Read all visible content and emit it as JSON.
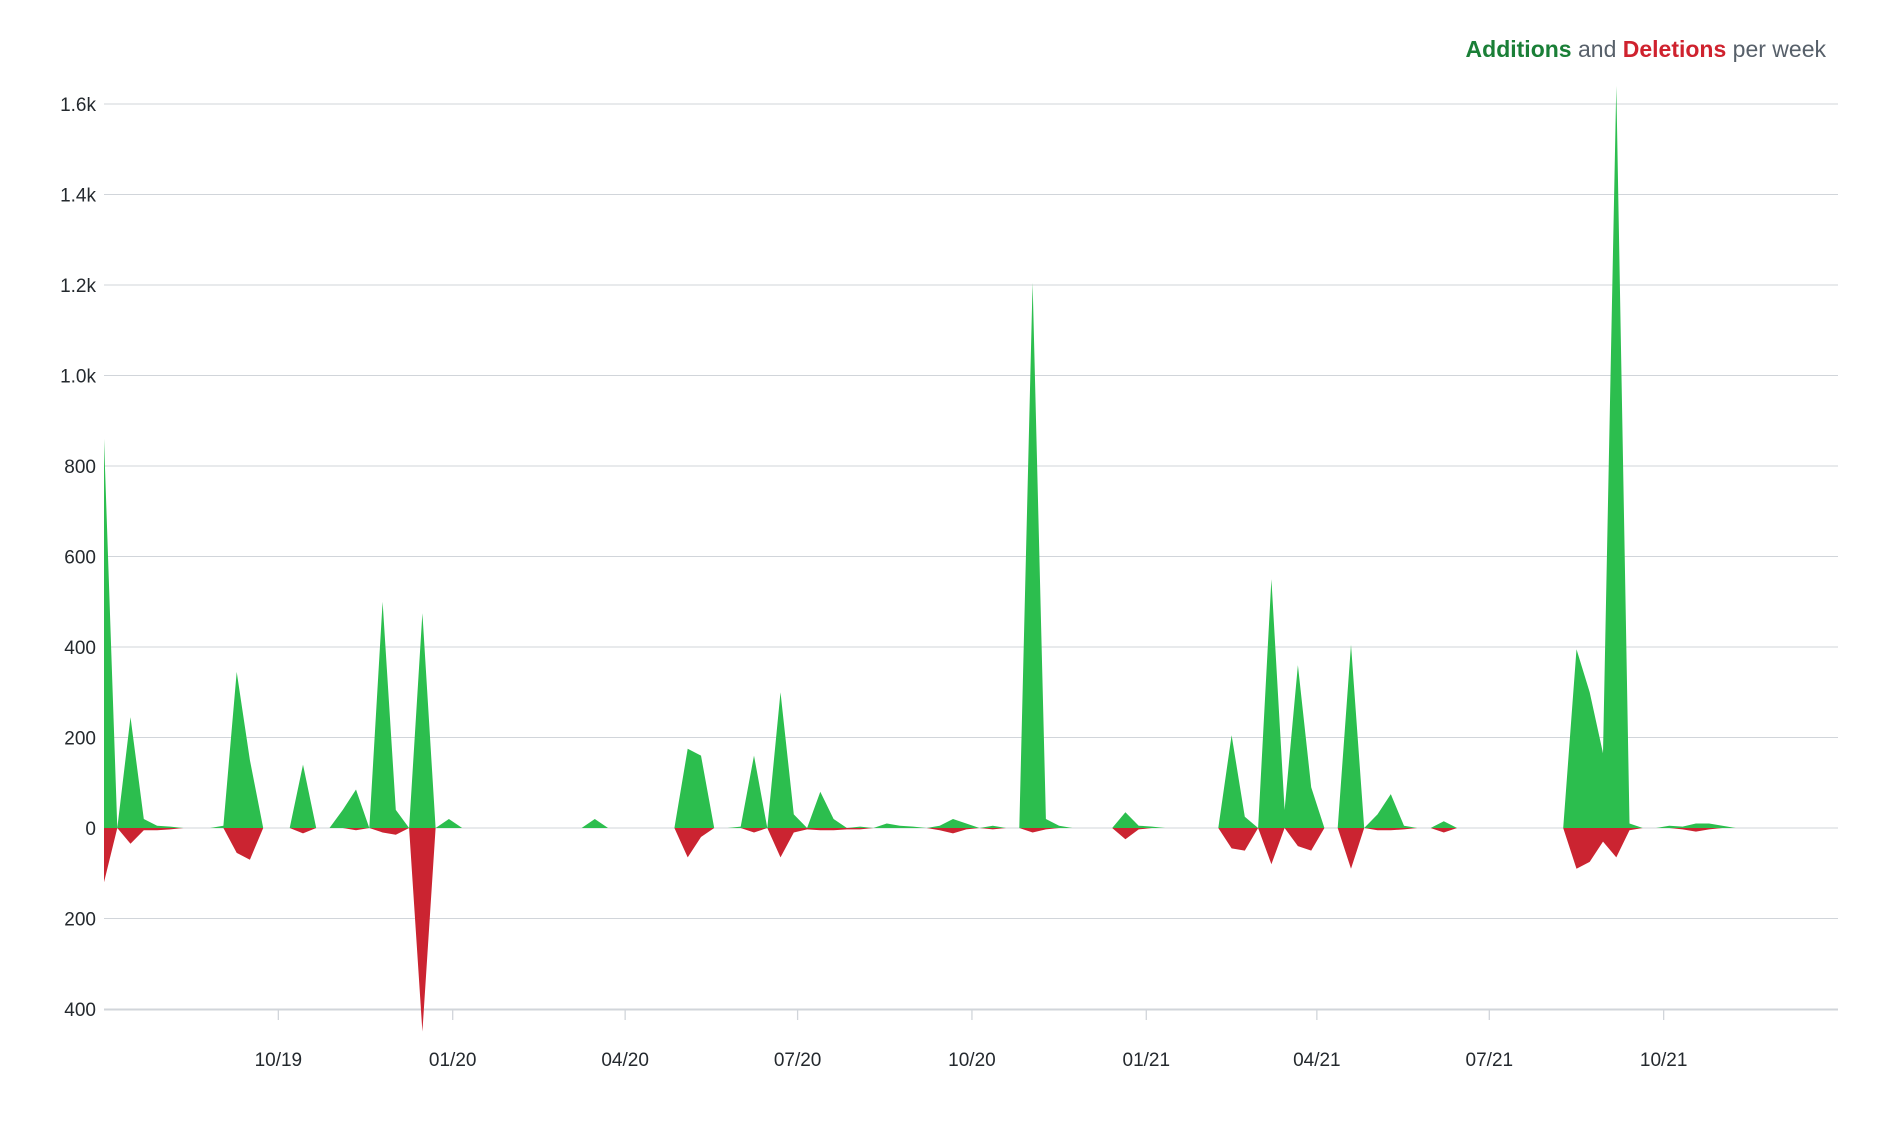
{
  "chart_data": {
    "type": "area",
    "legend": {
      "additions_label": "Additions",
      "connector": " and ",
      "deletions_label": "Deletions",
      "suffix": " per week",
      "placement": "top-right"
    },
    "colors": {
      "additions": "#2cbe4e",
      "deletions": "#cb2431",
      "legend_additions": "#1a7f37",
      "legend_deletions": "#cf222e",
      "grid": "#d1d5da"
    },
    "y_ticks": [
      {
        "value": 1600,
        "label": "1.6k"
      },
      {
        "value": 1400,
        "label": "1.4k"
      },
      {
        "value": 1200,
        "label": "1.2k"
      },
      {
        "value": 1000,
        "label": "1.0k"
      },
      {
        "value": 800,
        "label": "800"
      },
      {
        "value": 600,
        "label": "600"
      },
      {
        "value": 400,
        "label": "400"
      },
      {
        "value": 200,
        "label": "200"
      },
      {
        "value": 0,
        "label": "0"
      },
      {
        "value": -200,
        "label": "200"
      },
      {
        "value": -400,
        "label": "400"
      }
    ],
    "ylim": [
      -450,
      1620
    ],
    "x_ticks": [
      {
        "date": "2019-10-01",
        "label": "10/19"
      },
      {
        "date": "2020-01-01",
        "label": "01/20"
      },
      {
        "date": "2020-04-01",
        "label": "04/20"
      },
      {
        "date": "2020-07-01",
        "label": "07/20"
      },
      {
        "date": "2020-10-01",
        "label": "10/20"
      },
      {
        "date": "2021-01-01",
        "label": "01/21"
      },
      {
        "date": "2021-04-01",
        "label": "04/21"
      },
      {
        "date": "2021-07-01",
        "label": "07/21"
      },
      {
        "date": "2021-10-01",
        "label": "10/21"
      }
    ],
    "xlim": [
      "2019-07-01",
      "2022-01-01"
    ],
    "grid": true,
    "series": [
      {
        "name": "Additions",
        "points": [
          [
            "2019-07-01",
            860
          ],
          [
            "2019-07-08",
            0
          ],
          [
            "2019-07-15",
            245
          ],
          [
            "2019-07-22",
            20
          ],
          [
            "2019-07-29",
            5
          ],
          [
            "2019-08-05",
            3
          ],
          [
            "2019-08-12",
            0
          ],
          [
            "2019-08-26",
            0
          ],
          [
            "2019-09-02",
            5
          ],
          [
            "2019-09-09",
            345
          ],
          [
            "2019-09-16",
            150
          ],
          [
            "2019-09-23",
            0
          ],
          [
            "2019-10-07",
            0
          ],
          [
            "2019-10-14",
            140
          ],
          [
            "2019-10-21",
            0
          ],
          [
            "2019-10-28",
            0
          ],
          [
            "2019-11-04",
            40
          ],
          [
            "2019-11-11",
            85
          ],
          [
            "2019-11-18",
            0
          ],
          [
            "2019-11-25",
            500
          ],
          [
            "2019-12-02",
            40
          ],
          [
            "2019-12-09",
            0
          ],
          [
            "2019-12-16",
            475
          ],
          [
            "2019-12-23",
            0
          ],
          [
            "2019-12-30",
            20
          ],
          [
            "2020-01-06",
            0
          ],
          [
            "2020-03-09",
            0
          ],
          [
            "2020-03-16",
            20
          ],
          [
            "2020-03-23",
            0
          ],
          [
            "2020-04-27",
            0
          ],
          [
            "2020-05-04",
            175
          ],
          [
            "2020-05-11",
            160
          ],
          [
            "2020-05-18",
            0
          ],
          [
            "2020-05-25",
            0
          ],
          [
            "2020-06-01",
            3
          ],
          [
            "2020-06-08",
            160
          ],
          [
            "2020-06-15",
            0
          ],
          [
            "2020-06-22",
            300
          ],
          [
            "2020-06-29",
            30
          ],
          [
            "2020-07-06",
            0
          ],
          [
            "2020-07-13",
            80
          ],
          [
            "2020-07-20",
            20
          ],
          [
            "2020-07-27",
            0
          ],
          [
            "2020-08-03",
            3
          ],
          [
            "2020-08-10",
            0
          ],
          [
            "2020-08-17",
            10
          ],
          [
            "2020-08-24",
            5
          ],
          [
            "2020-08-31",
            3
          ],
          [
            "2020-09-07",
            0
          ],
          [
            "2020-09-14",
            5
          ],
          [
            "2020-09-21",
            20
          ],
          [
            "2020-09-28",
            10
          ],
          [
            "2020-10-05",
            0
          ],
          [
            "2020-10-12",
            5
          ],
          [
            "2020-10-19",
            0
          ],
          [
            "2020-10-26",
            0
          ],
          [
            "2020-11-02",
            1205
          ],
          [
            "2020-11-09",
            20
          ],
          [
            "2020-11-16",
            5
          ],
          [
            "2020-11-23",
            0
          ],
          [
            "2020-12-14",
            0
          ],
          [
            "2020-12-21",
            35
          ],
          [
            "2020-12-28",
            5
          ],
          [
            "2021-01-04",
            3
          ],
          [
            "2021-01-11",
            0
          ],
          [
            "2021-02-08",
            0
          ],
          [
            "2021-02-15",
            205
          ],
          [
            "2021-02-22",
            25
          ],
          [
            "2021-03-01",
            0
          ],
          [
            "2021-03-08",
            550
          ],
          [
            "2021-03-15",
            40
          ],
          [
            "2021-03-22",
            360
          ],
          [
            "2021-03-29",
            90
          ],
          [
            "2021-04-05",
            0
          ],
          [
            "2021-04-12",
            0
          ],
          [
            "2021-04-19",
            405
          ],
          [
            "2021-04-26",
            0
          ],
          [
            "2021-05-03",
            30
          ],
          [
            "2021-05-10",
            75
          ],
          [
            "2021-05-17",
            5
          ],
          [
            "2021-05-24",
            0
          ],
          [
            "2021-05-31",
            0
          ],
          [
            "2021-06-07",
            15
          ],
          [
            "2021-06-14",
            0
          ],
          [
            "2021-08-09",
            0
          ],
          [
            "2021-08-16",
            395
          ],
          [
            "2021-08-23",
            300
          ],
          [
            "2021-08-30",
            165
          ],
          [
            "2021-09-06",
            1640
          ],
          [
            "2021-09-13",
            10
          ],
          [
            "2021-09-20",
            0
          ],
          [
            "2021-09-27",
            0
          ],
          [
            "2021-10-04",
            5
          ],
          [
            "2021-10-11",
            3
          ],
          [
            "2021-10-18",
            10
          ],
          [
            "2021-10-25",
            10
          ],
          [
            "2021-11-01",
            5
          ],
          [
            "2021-11-08",
            0
          ]
        ]
      },
      {
        "name": "Deletions",
        "points": [
          [
            "2019-07-01",
            -120
          ],
          [
            "2019-07-08",
            0
          ],
          [
            "2019-07-15",
            -35
          ],
          [
            "2019-07-22",
            -5
          ],
          [
            "2019-07-29",
            -5
          ],
          [
            "2019-08-05",
            -3
          ],
          [
            "2019-08-12",
            0
          ],
          [
            "2019-09-02",
            0
          ],
          [
            "2019-09-09",
            -55
          ],
          [
            "2019-09-16",
            -70
          ],
          [
            "2019-09-23",
            0
          ],
          [
            "2019-10-07",
            0
          ],
          [
            "2019-10-14",
            -12
          ],
          [
            "2019-10-21",
            0
          ],
          [
            "2019-11-04",
            0
          ],
          [
            "2019-11-11",
            -5
          ],
          [
            "2019-11-18",
            0
          ],
          [
            "2019-11-25",
            -10
          ],
          [
            "2019-12-02",
            -15
          ],
          [
            "2019-12-09",
            0
          ],
          [
            "2019-12-16",
            -450
          ],
          [
            "2019-12-23",
            0
          ],
          [
            "2020-04-27",
            0
          ],
          [
            "2020-05-04",
            -65
          ],
          [
            "2020-05-11",
            -20
          ],
          [
            "2020-05-18",
            0
          ],
          [
            "2020-06-01",
            0
          ],
          [
            "2020-06-08",
            -10
          ],
          [
            "2020-06-15",
            0
          ],
          [
            "2020-06-22",
            -65
          ],
          [
            "2020-06-29",
            -10
          ],
          [
            "2020-07-06",
            -3
          ],
          [
            "2020-07-13",
            -5
          ],
          [
            "2020-07-20",
            -5
          ],
          [
            "2020-07-27",
            -3
          ],
          [
            "2020-08-03",
            -3
          ],
          [
            "2020-08-10",
            0
          ],
          [
            "2020-09-07",
            0
          ],
          [
            "2020-09-14",
            -5
          ],
          [
            "2020-09-21",
            -12
          ],
          [
            "2020-09-28",
            -3
          ],
          [
            "2020-10-05",
            0
          ],
          [
            "2020-10-12",
            -3
          ],
          [
            "2020-10-19",
            0
          ],
          [
            "2020-10-26",
            0
          ],
          [
            "2020-11-02",
            -10
          ],
          [
            "2020-11-09",
            -3
          ],
          [
            "2020-11-16",
            0
          ],
          [
            "2020-12-14",
            0
          ],
          [
            "2020-12-21",
            -25
          ],
          [
            "2020-12-28",
            -3
          ],
          [
            "2021-01-04",
            0
          ],
          [
            "2021-02-08",
            0
          ],
          [
            "2021-02-15",
            -45
          ],
          [
            "2021-02-22",
            -50
          ],
          [
            "2021-03-01",
            0
          ],
          [
            "2021-03-08",
            -80
          ],
          [
            "2021-03-15",
            0
          ],
          [
            "2021-03-22",
            -40
          ],
          [
            "2021-03-29",
            -50
          ],
          [
            "2021-04-05",
            0
          ],
          [
            "2021-04-12",
            0
          ],
          [
            "2021-04-19",
            -90
          ],
          [
            "2021-04-26",
            0
          ],
          [
            "2021-05-03",
            -5
          ],
          [
            "2021-05-10",
            -5
          ],
          [
            "2021-05-17",
            -3
          ],
          [
            "2021-05-24",
            0
          ],
          [
            "2021-05-31",
            0
          ],
          [
            "2021-06-07",
            -10
          ],
          [
            "2021-06-14",
            0
          ],
          [
            "2021-08-09",
            0
          ],
          [
            "2021-08-16",
            -90
          ],
          [
            "2021-08-23",
            -75
          ],
          [
            "2021-08-30",
            -30
          ],
          [
            "2021-09-06",
            -65
          ],
          [
            "2021-09-13",
            -5
          ],
          [
            "2021-09-20",
            0
          ],
          [
            "2021-10-04",
            0
          ],
          [
            "2021-10-11",
            -3
          ],
          [
            "2021-10-18",
            -8
          ],
          [
            "2021-10-25",
            -3
          ],
          [
            "2021-11-01",
            0
          ]
        ]
      }
    ]
  }
}
